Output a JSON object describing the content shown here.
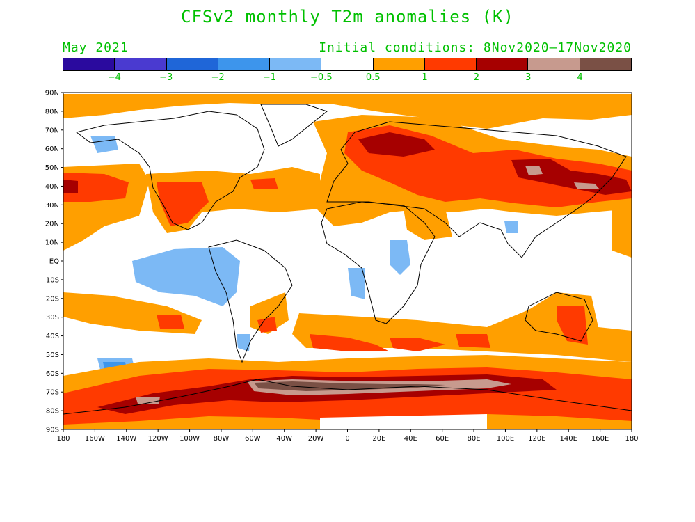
{
  "title": "CFSv2 monthly T2m anomalies (K)",
  "subtitle_left": "May 2021",
  "subtitle_right": "Initial conditions: 8Nov2020–17Nov2020",
  "legend": {
    "colors": [
      "#2a0a9e",
      "#4a3ad0",
      "#1f66d8",
      "#3d95ec",
      "#7cb9f5",
      "#ffffff",
      "#ff9f00",
      "#ff3a00",
      "#a60000",
      "#c79a8e",
      "#7a5045"
    ],
    "labels": [
      "−4",
      "−3",
      "−2",
      "−1",
      "−0.5",
      "0.5",
      "1",
      "2",
      "3",
      "4"
    ]
  },
  "axes": {
    "lat_labels": [
      "90N",
      "80N",
      "70N",
      "60N",
      "50N",
      "40N",
      "30N",
      "20N",
      "10N",
      "EQ",
      "10S",
      "20S",
      "30S",
      "40S",
      "50S",
      "60S",
      "70S",
      "80S",
      "90S"
    ],
    "lon_labels": [
      "180",
      "160W",
      "140W",
      "120W",
      "100W",
      "80W",
      "60W",
      "40W",
      "20W",
      "0",
      "20E",
      "40E",
      "60E",
      "80E",
      "100E",
      "120E",
      "140E",
      "160E",
      "180"
    ]
  }
}
